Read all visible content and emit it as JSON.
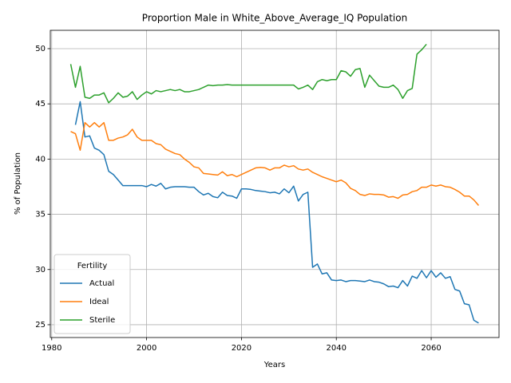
{
  "chart_data": {
    "type": "line",
    "title": "Proportion Male in White_Above_Average_IQ Population",
    "xlabel": "Years",
    "ylabel": "% of Population",
    "legend_title": "Fertility",
    "legend_loc": "lower left",
    "grid": true,
    "x": [
      1984,
      1985,
      1986,
      1987,
      1988,
      1989,
      1990,
      1991,
      1992,
      1993,
      1994,
      1995,
      1996,
      1997,
      1998,
      1999,
      2000,
      2001,
      2002,
      2003,
      2004,
      2005,
      2006,
      2007,
      2008,
      2009,
      2010,
      2011,
      2012,
      2013,
      2014,
      2015,
      2016,
      2017,
      2018,
      2019,
      2020,
      2021,
      2022,
      2023,
      2024,
      2025,
      2026,
      2027,
      2028,
      2029,
      2030,
      2031,
      2032,
      2033,
      2034,
      2035,
      2036,
      2037,
      2038,
      2039,
      2040,
      2041,
      2042,
      2043,
      2044,
      2045,
      2046,
      2047,
      2048,
      2049,
      2050,
      2051,
      2052,
      2053,
      2054,
      2055,
      2056,
      2057,
      2058,
      2059,
      2060,
      2061,
      2062,
      2063,
      2064,
      2065,
      2066,
      2067,
      2068,
      2069,
      2070
    ],
    "series": [
      {
        "name": "Actual",
        "color": "#1f77b4",
        "values": [
          null,
          43.1,
          45.2,
          42.0,
          42.1,
          41.0,
          40.8,
          40.4,
          38.9,
          38.6,
          38.1,
          37.6,
          37.6,
          37.6,
          37.6,
          37.6,
          37.5,
          37.7,
          37.55,
          37.8,
          37.3,
          37.45,
          37.5,
          37.5,
          37.5,
          37.45,
          37.45,
          37.05,
          36.75,
          36.9,
          36.6,
          36.5,
          37.0,
          36.7,
          36.65,
          36.45,
          37.3,
          37.3,
          37.25,
          37.15,
          37.1,
          37.05,
          36.95,
          37.0,
          36.85,
          37.3,
          36.95,
          37.55,
          36.2,
          36.8,
          37.0,
          30.2,
          30.5,
          29.6,
          29.7,
          29.05,
          29.0,
          29.05,
          28.9,
          29.0,
          29.0,
          28.95,
          28.9,
          29.05,
          28.9,
          28.85,
          28.7,
          28.45,
          28.5,
          28.35,
          29.0,
          28.5,
          29.4,
          29.2,
          29.9,
          29.25,
          29.9,
          29.3,
          29.7,
          29.2,
          29.35,
          28.2,
          28.05,
          26.9,
          26.8,
          25.4,
          25.15
        ]
      },
      {
        "name": "Ideal",
        "color": "#ff7f0e",
        "values": [
          42.5,
          42.3,
          40.8,
          43.3,
          42.9,
          43.3,
          42.9,
          43.3,
          41.7,
          41.7,
          41.9,
          42.0,
          42.2,
          42.7,
          42.0,
          41.7,
          41.7,
          41.7,
          41.4,
          41.3,
          40.9,
          40.7,
          40.5,
          40.4,
          40.0,
          39.7,
          39.3,
          39.2,
          38.7,
          38.65,
          38.6,
          38.55,
          38.85,
          38.5,
          38.6,
          38.4,
          38.6,
          38.8,
          39.0,
          39.2,
          39.25,
          39.2,
          39.0,
          39.2,
          39.2,
          39.45,
          39.3,
          39.4,
          39.1,
          39.0,
          39.1,
          38.8,
          38.6,
          38.4,
          38.25,
          38.1,
          37.95,
          38.1,
          37.85,
          37.35,
          37.15,
          36.8,
          36.7,
          36.85,
          36.8,
          36.8,
          36.75,
          36.55,
          36.6,
          36.45,
          36.75,
          36.8,
          37.05,
          37.15,
          37.45,
          37.45,
          37.65,
          37.55,
          37.65,
          37.5,
          37.45,
          37.25,
          37.0,
          36.65,
          36.65,
          36.3,
          35.8
        ]
      },
      {
        "name": "Sterile",
        "color": "#2ca02c",
        "values": [
          48.6,
          46.5,
          48.4,
          45.6,
          45.5,
          45.8,
          45.8,
          46.0,
          45.1,
          45.5,
          46.0,
          45.6,
          45.7,
          46.1,
          45.4,
          45.8,
          46.1,
          45.9,
          46.2,
          46.1,
          46.2,
          46.3,
          46.2,
          46.3,
          46.1,
          46.1,
          46.2,
          46.3,
          46.5,
          46.7,
          46.65,
          46.7,
          46.7,
          46.75,
          46.7,
          46.7,
          46.7,
          46.7,
          46.7,
          46.7,
          46.7,
          46.7,
          46.7,
          46.7,
          46.7,
          46.7,
          46.7,
          46.7,
          46.35,
          46.5,
          46.7,
          46.3,
          47.0,
          47.2,
          47.1,
          47.2,
          47.2,
          48.0,
          47.9,
          47.5,
          48.1,
          48.2,
          46.5,
          47.6,
          47.1,
          46.6,
          46.5,
          46.5,
          46.7,
          46.3,
          45.5,
          46.2,
          46.4,
          49.5,
          49.9,
          50.4,
          null,
          null,
          null,
          null,
          null,
          null,
          null,
          null,
          null,
          null,
          null
        ]
      }
    ],
    "xlim": [
      1979.7,
      2074.3
    ],
    "xticks": [
      1980,
      2000,
      2020,
      2040,
      2060
    ],
    "ylim": [
      23.84,
      51.66
    ],
    "yticks": [
      25,
      30,
      35,
      40,
      45,
      50
    ]
  }
}
